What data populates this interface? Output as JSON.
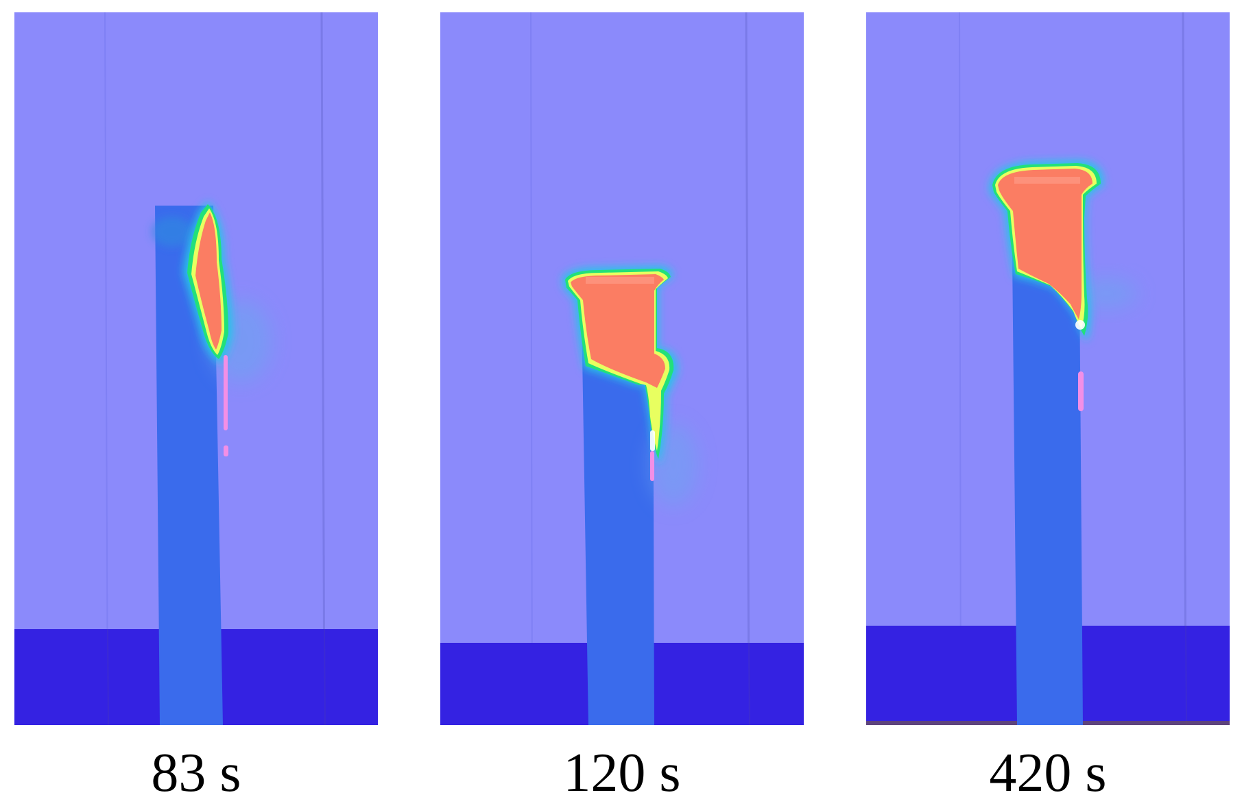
{
  "panels": [
    {
      "label": "83 s"
    },
    {
      "label": "120 s"
    },
    {
      "label": "420 s"
    }
  ],
  "colors": {
    "background_gas": "#8b8afb",
    "pool_liquid": "#3422e2",
    "column_solid": "#3a6bec",
    "hot_core": "#fb7d63",
    "hot_edge_yellow": "#e8ff60",
    "hot_edge_green": "#22e07a",
    "hot_edge_cyan": "#25c4e8",
    "trace_pink": "#f38fe6"
  }
}
